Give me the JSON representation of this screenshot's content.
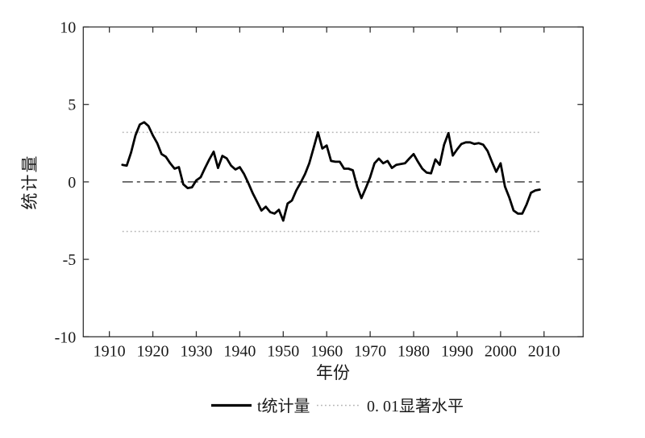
{
  "figure": {
    "background_color": "#ffffff",
    "line_color": "#000000",
    "zero_line_color": "#5f5f5f",
    "significance_line_color": "#b5b5b5",
    "axis_color": "#333333"
  },
  "chart_data": {
    "type": "line",
    "title": "",
    "xlabel": "年份",
    "ylabel": "统计量",
    "xlim": [
      1904,
      2019
    ],
    "ylim": [
      -10,
      10
    ],
    "x_ticks": [
      1910,
      1920,
      1930,
      1940,
      1950,
      1960,
      1970,
      1980,
      1990,
      2000,
      2010
    ],
    "y_ticks": [
      10,
      5,
      0,
      -5,
      -10
    ],
    "grid": false,
    "legend_position": "bottom-center",
    "series": [
      {
        "name": "t统计量",
        "color": "#000000",
        "x_start": 1913,
        "x_step": 1,
        "x_end": 2009,
        "values": [
          1.1,
          1.05,
          1.9,
          3.0,
          3.7,
          3.85,
          3.6,
          3.0,
          2.5,
          1.8,
          1.62,
          1.2,
          0.85,
          0.95,
          -0.15,
          -0.4,
          -0.35,
          0.1,
          0.3,
          0.9,
          1.45,
          1.95,
          0.9,
          1.68,
          1.52,
          1.05,
          0.8,
          0.95,
          0.5,
          -0.1,
          -0.75,
          -1.3,
          -1.85,
          -1.6,
          -1.95,
          -2.05,
          -1.8,
          -2.5,
          -1.4,
          -1.2,
          -0.55,
          -0.05,
          0.5,
          1.2,
          2.2,
          3.2,
          2.15,
          2.35,
          1.35,
          1.3,
          1.3,
          0.85,
          0.85,
          0.75,
          -0.3,
          -1.05,
          -0.4,
          0.3,
          1.2,
          1.5,
          1.2,
          1.35,
          0.9,
          1.1,
          1.15,
          1.2,
          1.5,
          1.8,
          1.3,
          0.85,
          0.6,
          0.55,
          1.45,
          1.1,
          2.4,
          3.15,
          1.7,
          2.1,
          2.45,
          2.55,
          2.55,
          2.45,
          2.5,
          2.4,
          2.0,
          1.3,
          0.65,
          1.2,
          -0.3,
          -1.0,
          -1.85,
          -2.05,
          -2.05,
          -1.45,
          -0.7,
          -0.55,
          -0.5
        ]
      }
    ],
    "reference_lines": [
      {
        "name": "upper-significance",
        "value": 3.2,
        "style": "dotted",
        "color": "#b5b5b5",
        "x_range": [
          1913,
          2009
        ]
      },
      {
        "name": "lower-significance",
        "value": -3.2,
        "style": "dotted",
        "color": "#b5b5b5",
        "x_range": [
          1913,
          2009
        ]
      },
      {
        "name": "zero-line",
        "value": 0,
        "style": "dash-dot",
        "color": "#5f5f5f",
        "x_range": [
          1913,
          2009
        ]
      }
    ],
    "legend": [
      {
        "label": "t统计量",
        "line": "solid",
        "color": "#000000"
      },
      {
        "label": "0. 01显著水平",
        "line": "dotted",
        "color": "#b5b5b5"
      }
    ]
  }
}
